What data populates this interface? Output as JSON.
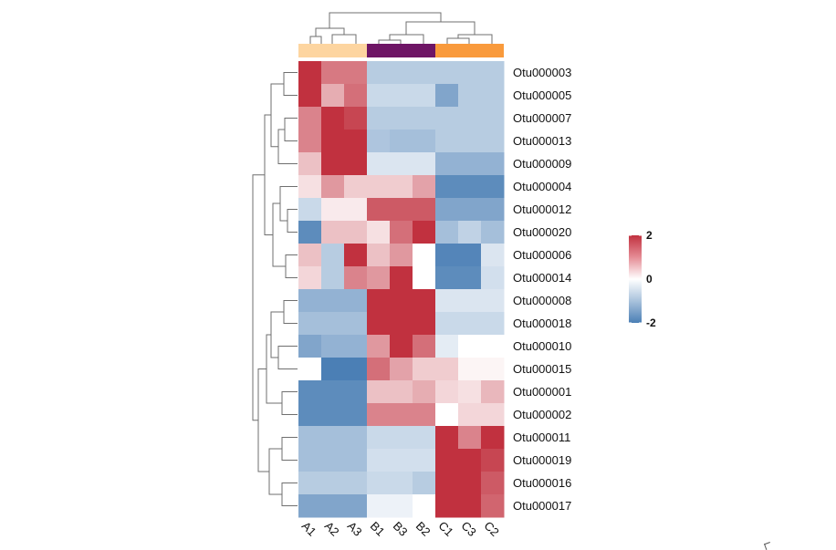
{
  "chart_data": {
    "type": "heatmap",
    "title": "",
    "rows": [
      "Otu000003",
      "Otu000005",
      "Otu000007",
      "Otu000013",
      "Otu000009",
      "Otu000004",
      "Otu000012",
      "Otu000020",
      "Otu000006",
      "Otu000014",
      "Otu000008",
      "Otu000018",
      "Otu000010",
      "Otu000015",
      "Otu000001",
      "Otu000002",
      "Otu000011",
      "Otu000019",
      "Otu000016",
      "Otu000017"
    ],
    "columns": [
      "A1",
      "A2",
      "A3",
      "B1",
      "B3",
      "B2",
      "C1",
      "C3",
      "C2"
    ],
    "groups": [
      {
        "name": "A",
        "color": "#FDD5A0",
        "columns": [
          "A1",
          "A2",
          "A3"
        ]
      },
      {
        "name": "B",
        "color": "#6E1565",
        "columns": [
          "B1",
          "B3",
          "B2"
        ]
      },
      {
        "name": "C",
        "color": "#F99A3C",
        "columns": [
          "C1",
          "C3",
          "C2"
        ]
      }
    ],
    "values": [
      [
        2.6,
        1.3,
        1.3,
        -0.8,
        -0.8,
        -0.8,
        -0.8,
        -0.8,
        -0.8
      ],
      [
        2.8,
        0.8,
        1.4,
        -0.6,
        -0.6,
        -0.6,
        -1.4,
        -0.8,
        -0.8
      ],
      [
        1.2,
        2.6,
        1.8,
        -0.8,
        -0.8,
        -0.8,
        -0.8,
        -0.8,
        -0.8
      ],
      [
        1.2,
        2.2,
        2.2,
        -0.9,
        -1.0,
        -1.0,
        -0.8,
        -0.8,
        -0.8
      ],
      [
        0.6,
        2.6,
        2.2,
        -0.4,
        -0.4,
        -0.4,
        -1.2,
        -1.2,
        -1.2
      ],
      [
        0.3,
        1.0,
        0.5,
        0.5,
        0.5,
        0.9,
        -1.8,
        -1.8,
        -1.8
      ],
      [
        -0.6,
        0.2,
        0.2,
        1.6,
        1.6,
        1.6,
        -1.4,
        -1.4,
        -1.4
      ],
      [
        -1.8,
        0.6,
        0.6,
        0.3,
        1.4,
        2.2,
        -1.0,
        -0.7,
        -1.0
      ],
      [
        0.6,
        -0.8,
        2.0,
        0.6,
        1.0,
        0.0,
        -1.9,
        -1.9,
        -0.4
      ],
      [
        0.4,
        -0.8,
        1.2,
        1.0,
        2.0,
        0.0,
        -1.8,
        -1.8,
        -0.5
      ],
      [
        -1.2,
        -1.2,
        -1.2,
        2.0,
        2.0,
        2.0,
        -0.4,
        -0.4,
        -0.4
      ],
      [
        -1.0,
        -1.0,
        -1.0,
        2.0,
        2.0,
        2.4,
        -0.6,
        -0.6,
        -0.6
      ],
      [
        -1.4,
        -1.2,
        -1.2,
        1.0,
        2.8,
        1.4,
        -0.3,
        0.0,
        0.0
      ],
      [
        0.0,
        -2.0,
        -2.0,
        1.4,
        0.9,
        0.5,
        0.5,
        0.1,
        0.1
      ],
      [
        -1.8,
        -1.8,
        -1.8,
        0.6,
        0.6,
        0.8,
        0.4,
        0.3,
        0.7
      ],
      [
        -1.8,
        -1.8,
        -1.8,
        1.2,
        1.2,
        1.2,
        0.0,
        0.4,
        0.4
      ],
      [
        -1.0,
        -1.0,
        -1.0,
        -0.6,
        -0.6,
        -0.6,
        2.0,
        1.2,
        2.4
      ],
      [
        -1.0,
        -1.0,
        -1.0,
        -0.5,
        -0.5,
        -0.5,
        2.0,
        2.4,
        1.8
      ],
      [
        -0.8,
        -0.8,
        -0.8,
        -0.6,
        -0.6,
        -0.8,
        2.2,
        2.0,
        1.6
      ],
      [
        -1.4,
        -1.4,
        -1.4,
        -0.2,
        -0.2,
        0.0,
        2.0,
        2.0,
        1.5
      ]
    ],
    "color_scale": {
      "low": "#4B7FB5",
      "mid": "#FFFFFF",
      "high": "#C1313F",
      "range": [
        -2,
        2
      ]
    },
    "legend": {
      "ticks": [
        2,
        0,
        -2
      ],
      "tick_labels": [
        "2",
        "0",
        "-2"
      ],
      "placement": "right"
    },
    "row_dendrogram": true,
    "column_dendrogram": true
  }
}
